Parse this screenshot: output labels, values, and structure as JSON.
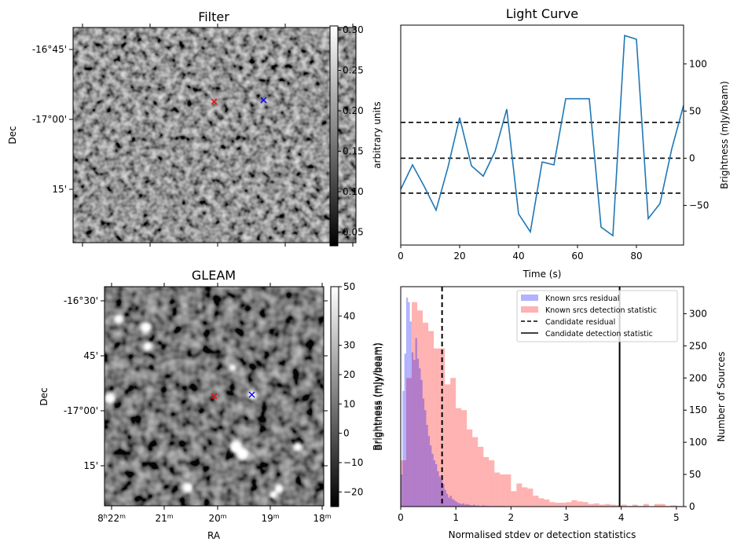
{
  "figure": {
    "panels": [
      "filter",
      "light_curve",
      "gleam",
      "histogram"
    ]
  },
  "filter_panel": {
    "title": "Filter",
    "ylabel": "Dec",
    "ytick_labels": [
      "-16°45'",
      "-17°00'",
      "15'"
    ],
    "colorbar": {
      "label": "arbitrary units",
      "range": [
        0.033,
        0.305
      ],
      "ticks": [
        0.05,
        0.1,
        0.15,
        0.2,
        0.25,
        0.3
      ],
      "tick_labels": [
        "0.05",
        "0.10",
        "0.15",
        "0.20",
        "0.25",
        "0.30"
      ],
      "colormap": "gray"
    },
    "markers": [
      {
        "name": "candidate",
        "symbol": "x",
        "color": "#ff0000"
      },
      {
        "name": "known-source",
        "symbol": "x",
        "color": "#0000ff"
      }
    ]
  },
  "gleam_panel": {
    "title": "GLEAM",
    "xlabel": "RA",
    "ylabel": "Dec",
    "xtick_labels": [
      {
        "h": "8",
        "m": "22"
      },
      {
        "h": "",
        "m": "21"
      },
      {
        "h": "",
        "m": "20"
      },
      {
        "h": "",
        "m": "19"
      },
      {
        "h": "",
        "m": "18"
      }
    ],
    "ytick_labels": [
      "-16°30'",
      "45'",
      "-17°00'",
      "15'"
    ],
    "colorbar": {
      "label": "Brightness (mJy/beam)",
      "range": [
        -25,
        50
      ],
      "ticks": [
        -20,
        -10,
        0,
        10,
        20,
        30,
        40,
        50
      ],
      "tick_labels": [
        "−20",
        "−10",
        "0",
        "10",
        "20",
        "30",
        "40",
        "50"
      ],
      "colormap": "gray"
    },
    "markers": [
      {
        "name": "candidate",
        "symbol": "x",
        "color": "#ff0000"
      },
      {
        "name": "known-source",
        "symbol": "x",
        "color": "#0000ff"
      }
    ]
  },
  "chart_data": [
    {
      "type": "line",
      "title": "Light Curve",
      "xlabel": "Time (s)",
      "ylabel": "Brightness (mJy/beam)",
      "left_ylabel": "arbitrary units",
      "xlim": [
        0,
        96
      ],
      "ylim": [
        -92,
        141
      ],
      "xticks": [
        0,
        20,
        40,
        60,
        80
      ],
      "yticks": [
        -50,
        0,
        50,
        100
      ],
      "ytick_labels": [
        "−50",
        "0",
        "50",
        "100"
      ],
      "series": [
        {
          "name": "light curve",
          "color": "#1f77b4",
          "x": [
            0,
            4,
            8,
            12,
            16,
            20,
            24,
            28,
            32,
            36,
            40,
            44,
            48,
            52,
            56,
            60,
            64,
            68,
            72,
            76,
            80,
            84,
            88,
            92,
            96
          ],
          "y": [
            -33,
            -7,
            -30,
            -55,
            -10,
            43,
            -8,
            -19,
            7,
            52,
            -59,
            -78,
            -4,
            -7,
            63,
            63,
            63,
            -73,
            -82,
            130,
            126,
            -64,
            -48,
            10,
            56
          ]
        }
      ],
      "hlines": [
        {
          "y": 38,
          "style": "dashed",
          "color": "#000000"
        },
        {
          "y": 0,
          "style": "dashed",
          "color": "#000000"
        },
        {
          "y": -37,
          "style": "dashed",
          "color": "#000000"
        }
      ]
    },
    {
      "type": "bar",
      "subtype": "histogram",
      "xlabel": "Normalised stdev or detection statistics",
      "ylabel": "Number of Sources",
      "left_ylabel": "Brightness (mJy/beam)",
      "xlim": [
        0,
        5.13
      ],
      "ylim": [
        0,
        342
      ],
      "xticks": [
        0,
        1,
        2,
        3,
        4,
        5
      ],
      "yticks": [
        0,
        50,
        100,
        150,
        200,
        250,
        300
      ],
      "legend_position": "top-right",
      "legend": [
        {
          "label": "Known srcs residual",
          "kind": "patch",
          "color": "#0000ff",
          "alpha": 0.3
        },
        {
          "label": "Known srcs detection statistic",
          "kind": "patch",
          "color": "#ff0000",
          "alpha": 0.3
        },
        {
          "label": "Candidate residual",
          "kind": "dashed-line",
          "color": "#000000"
        },
        {
          "label": "Candidate detection statistic",
          "kind": "solid-line",
          "color": "#000000"
        }
      ],
      "series": [
        {
          "name": "Known srcs residual",
          "color": "#0000ff",
          "alpha": 0.3,
          "bin_start": 0.0,
          "bin_width": 0.033,
          "values": [
            50,
            180,
            238,
            325,
            318,
            288,
            240,
            228,
            262,
            230,
            215,
            197,
            168,
            150,
            127,
            110,
            95,
            82,
            72,
            66,
            55,
            47,
            42,
            35,
            26,
            20,
            14,
            17,
            12,
            10,
            8,
            6,
            5,
            4,
            5,
            3,
            4,
            3,
            2,
            2,
            3,
            1,
            2,
            1,
            1,
            2,
            1,
            1,
            1,
            1,
            0,
            1,
            1,
            0,
            1,
            0,
            1,
            0
          ]
        },
        {
          "name": "Known srcs detection statistic",
          "color": "#ff0000",
          "alpha": 0.3,
          "bin_start": 0.0,
          "bin_width": 0.1,
          "values": [
            72,
            200,
            318,
            305,
            286,
            273,
            246,
            246,
            190,
            200,
            153,
            150,
            120,
            108,
            93,
            77,
            72,
            53,
            50,
            50,
            24,
            36,
            30,
            28,
            17,
            13,
            11,
            7,
            6,
            6,
            7,
            10,
            8,
            7,
            4,
            5,
            3,
            4,
            3,
            2,
            3,
            1,
            3,
            1,
            4,
            0,
            4,
            4,
            1,
            2,
            1
          ]
        }
      ],
      "vlines": [
        {
          "name": "Candidate residual",
          "x": 0.75,
          "style": "dashed",
          "color": "#000000"
        },
        {
          "name": "Candidate detection statistic",
          "x": 3.97,
          "style": "solid",
          "color": "#000000"
        }
      ]
    }
  ]
}
